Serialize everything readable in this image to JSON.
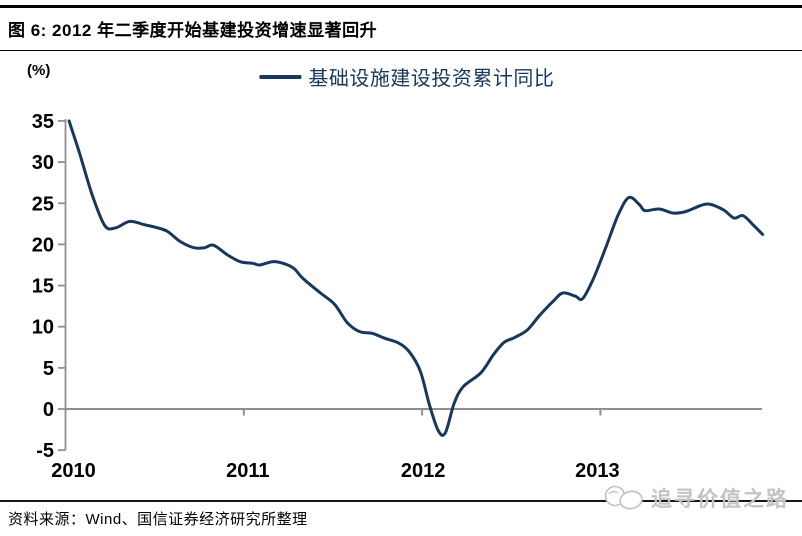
{
  "header": {
    "title": "图 6: 2012 年二季度开始基建投资增速显著回升"
  },
  "footer": {
    "source": "资料来源：Wind、国信证券经济研究所整理",
    "watermark": "追寻价值之路"
  },
  "chart_data": {
    "type": "line",
    "title": "图 6: 2012 年二季度开始基建投资增速显著回升",
    "unit_label": "(%)",
    "xlabel": "",
    "ylabel": "(%)",
    "ylim": [
      -5,
      35
    ],
    "x_range": [
      2010.0,
      2013.92
    ],
    "grid": "zero-baseline-only",
    "legend_position": "top-center",
    "line_color": "#17375E",
    "axis_color": "#8F8F8F",
    "tick_label_color": "#000000",
    "yticks": [
      35,
      30,
      25,
      20,
      15,
      10,
      5,
      0,
      -5
    ],
    "xticks": [
      {
        "x": 2010,
        "label": "2010"
      },
      {
        "x": 2011,
        "label": "2011"
      },
      {
        "x": 2012,
        "label": "2012"
      },
      {
        "x": 2013,
        "label": "2013"
      }
    ],
    "series": [
      {
        "name": "基础设施建设投资累计同比",
        "color": "#17375E",
        "points": [
          [
            2010.02,
            35.0
          ],
          [
            2010.08,
            31.0
          ],
          [
            2010.15,
            26.0
          ],
          [
            2010.22,
            22.3
          ],
          [
            2010.28,
            22.0
          ],
          [
            2010.36,
            22.8
          ],
          [
            2010.44,
            22.4
          ],
          [
            2010.5,
            22.1
          ],
          [
            2010.57,
            21.6
          ],
          [
            2010.64,
            20.4
          ],
          [
            2010.72,
            19.6
          ],
          [
            2010.78,
            19.6
          ],
          [
            2010.83,
            19.9
          ],
          [
            2010.91,
            18.7
          ],
          [
            2010.98,
            17.9
          ],
          [
            2011.05,
            17.7
          ],
          [
            2011.09,
            17.5
          ],
          [
            2011.16,
            17.9
          ],
          [
            2011.22,
            17.7
          ],
          [
            2011.28,
            17.1
          ],
          [
            2011.33,
            15.9
          ],
          [
            2011.43,
            14.1
          ],
          [
            2011.51,
            12.7
          ],
          [
            2011.58,
            10.5
          ],
          [
            2011.65,
            9.4
          ],
          [
            2011.72,
            9.2
          ],
          [
            2011.79,
            8.6
          ],
          [
            2011.87,
            8.0
          ],
          [
            2011.93,
            6.9
          ],
          [
            2011.99,
            4.6
          ],
          [
            2012.04,
            0.6
          ],
          [
            2012.09,
            -2.6
          ],
          [
            2012.13,
            -2.9
          ],
          [
            2012.18,
            0.7
          ],
          [
            2012.23,
            2.7
          ],
          [
            2012.33,
            4.4
          ],
          [
            2012.4,
            6.6
          ],
          [
            2012.46,
            8.1
          ],
          [
            2012.52,
            8.7
          ],
          [
            2012.59,
            9.6
          ],
          [
            2012.66,
            11.4
          ],
          [
            2012.74,
            13.2
          ],
          [
            2012.79,
            14.1
          ],
          [
            2012.86,
            13.7
          ],
          [
            2012.9,
            13.4
          ],
          [
            2012.96,
            15.8
          ],
          [
            2013.03,
            19.6
          ],
          [
            2013.1,
            23.6
          ],
          [
            2013.16,
            25.7
          ],
          [
            2013.22,
            24.8
          ],
          [
            2013.25,
            24.1
          ],
          [
            2013.33,
            24.3
          ],
          [
            2013.41,
            23.8
          ],
          [
            2013.48,
            24.0
          ],
          [
            2013.56,
            24.7
          ],
          [
            2013.61,
            24.9
          ],
          [
            2013.69,
            24.2
          ],
          [
            2013.75,
            23.2
          ],
          [
            2013.8,
            23.5
          ],
          [
            2013.86,
            22.3
          ],
          [
            2013.91,
            21.2
          ]
        ]
      }
    ]
  }
}
